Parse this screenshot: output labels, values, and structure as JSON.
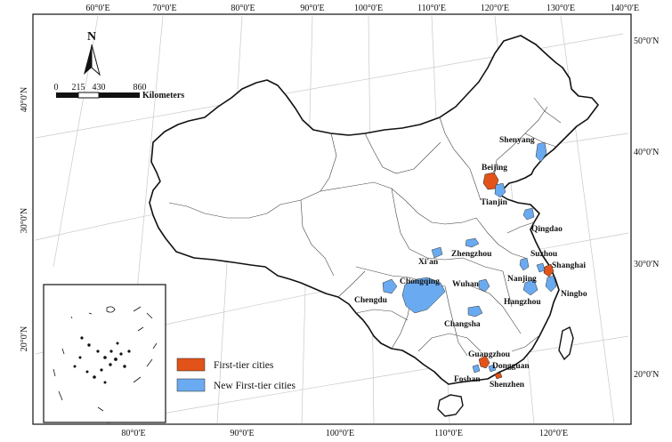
{
  "map": {
    "top_longitude_labels": [
      "60°0′E",
      "70°0′E",
      "80°0′E",
      "90°0′E",
      "100°0′E",
      "110°0′E",
      "120°0′E",
      "130°0′E",
      "140°0′E"
    ],
    "bottom_longitude_labels": [
      "80°0′E",
      "90°0′E",
      "100°0′E",
      "110°0′E",
      "120°0′E"
    ],
    "left_latitude_labels": [
      "40°0′N",
      "30°0′N",
      "20°0′N"
    ],
    "right_latitude_labels": [
      "50°0′N",
      "40°0′N",
      "30°0′N",
      "20°0′N"
    ],
    "north_arrow": {
      "letter": "N"
    },
    "scale_bar": {
      "ticks": [
        "0",
        "215",
        "430",
        "860"
      ],
      "unit": "Kilometers"
    },
    "legend": {
      "items": [
        {
          "label": "First-tier cities",
          "color": "#e2531a"
        },
        {
          "label": "New First-tier cities",
          "color": "#6aaaf0"
        }
      ]
    },
    "cities": [
      {
        "key": "shenyang",
        "label": "Shenyang",
        "tier": "new"
      },
      {
        "key": "beijing",
        "label": "Beijing",
        "tier": "first"
      },
      {
        "key": "tianjin",
        "label": "Tianjin",
        "tier": "new"
      },
      {
        "key": "qingdao",
        "label": "Qingdao",
        "tier": "new"
      },
      {
        "key": "xian",
        "label": "Xi'an",
        "tier": "new"
      },
      {
        "key": "zhengzhou",
        "label": "Zhengzhou",
        "tier": "new"
      },
      {
        "key": "suzhou",
        "label": "Suzhou",
        "tier": "new"
      },
      {
        "key": "shanghai",
        "label": "Shanghai",
        "tier": "first"
      },
      {
        "key": "chongqing",
        "label": "Chongqing",
        "tier": "new"
      },
      {
        "key": "wuhan",
        "label": "Wuhan",
        "tier": "new"
      },
      {
        "key": "nanjing",
        "label": "Nanjing",
        "tier": "new"
      },
      {
        "key": "ningbo",
        "label": "Ningbo",
        "tier": "new"
      },
      {
        "key": "chengdu",
        "label": "Chengdu",
        "tier": "new"
      },
      {
        "key": "hangzhou",
        "label": "Hangzhou",
        "tier": "new"
      },
      {
        "key": "changsha",
        "label": "Changsha",
        "tier": "new"
      },
      {
        "key": "guangzhou",
        "label": "Guangzhou",
        "tier": "first"
      },
      {
        "key": "dongguan",
        "label": "Dongguan",
        "tier": "new"
      },
      {
        "key": "foshan",
        "label": "Foshan",
        "tier": "new"
      },
      {
        "key": "shenzhen",
        "label": "Shenzhen",
        "tier": "first"
      }
    ]
  }
}
